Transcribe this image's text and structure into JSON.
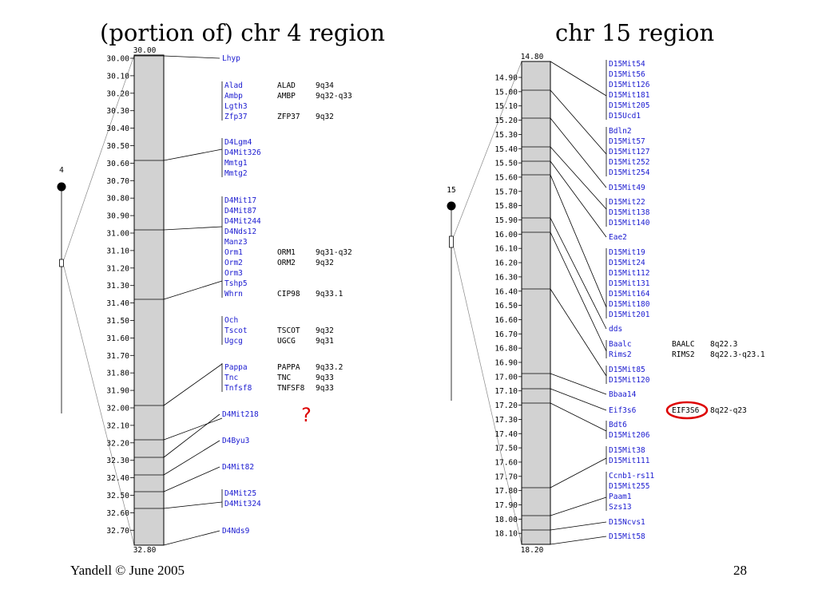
{
  "titles": {
    "left": "(portion of) chr 4 region",
    "right": "chr 15 region"
  },
  "footer": {
    "left": "Yandell © June 2005",
    "right": "28"
  },
  "question_mark": "?",
  "colors": {
    "marker": "#1a1ad0",
    "highlight": "#dd0000",
    "chromosome": "#d2d2d2"
  },
  "panels": [
    {
      "name": "chr4",
      "chrom_label": "4",
      "range": {
        "top": "30.00",
        "bottom": "32.80"
      },
      "ticks": [
        "30.00",
        "30.10",
        "30.20",
        "30.30",
        "30.40",
        "30.50",
        "30.60",
        "30.70",
        "30.80",
        "30.90",
        "31.00",
        "31.10",
        "31.20",
        "31.30",
        "31.40",
        "31.50",
        "31.60",
        "31.70",
        "31.80",
        "31.90",
        "32.00",
        "32.10",
        "32.20",
        "32.30",
        "32.40",
        "32.50",
        "32.60",
        "32.70"
      ],
      "groups": [
        {
          "markers": [
            {
              "name": "Lhyp"
            }
          ]
        },
        {
          "markers": [
            {
              "name": "Alad",
              "human": "ALAD",
              "band": "9q34"
            },
            {
              "name": "Ambp",
              "human": "AMBP",
              "band": "9q32-q33"
            },
            {
              "name": "Lgth3"
            },
            {
              "name": "Zfp37",
              "human": "ZFP37",
              "band": "9q32"
            }
          ]
        },
        {
          "markers": [
            {
              "name": "D4Lgm4"
            },
            {
              "name": "D4Mit326"
            },
            {
              "name": "Mmtg1"
            },
            {
              "name": "Mmtg2"
            }
          ]
        },
        {
          "markers": [
            {
              "name": "D4Mit17"
            },
            {
              "name": "D4Mit87"
            },
            {
              "name": "D4Mit244"
            },
            {
              "name": "D4Nds12"
            },
            {
              "name": "Manz3"
            },
            {
              "name": "Orm1",
              "human": "ORM1",
              "band": "9q31-q32"
            },
            {
              "name": "Orm2",
              "human": "ORM2",
              "band": "9q32"
            },
            {
              "name": "Orm3"
            },
            {
              "name": "Tshp5"
            },
            {
              "name": "Whrn",
              "human": "CIP98",
              "band": "9q33.1"
            }
          ]
        },
        {
          "markers": [
            {
              "name": "Och"
            },
            {
              "name": "Tscot",
              "human": "TSCOT",
              "band": "9q32"
            },
            {
              "name": "Ugcg",
              "human": "UGCG",
              "band": "9q31"
            }
          ]
        },
        {
          "markers": [
            {
              "name": "Pappa",
              "human": "PAPPA",
              "band": "9q33.2"
            },
            {
              "name": "Tnc",
              "human": "TNC",
              "band": "9q33"
            },
            {
              "name": "Tnfsf8",
              "human": "TNFSF8",
              "band": "9q33"
            }
          ]
        },
        {
          "markers": [
            {
              "name": "D4Mit218"
            }
          ]
        },
        {
          "markers": [
            {
              "name": "D4Byu3"
            }
          ]
        },
        {
          "markers": [
            {
              "name": "D4Mit82"
            }
          ]
        },
        {
          "markers": [
            {
              "name": "D4Mit25"
            },
            {
              "name": "D4Mit324"
            }
          ]
        },
        {
          "markers": [
            {
              "name": "D4Nds9"
            }
          ]
        }
      ]
    },
    {
      "name": "chr15",
      "chrom_label": "15",
      "range": {
        "top": "14.80",
        "bottom": "18.20"
      },
      "ticks": [
        "14.90",
        "15.00",
        "15.10",
        "15.20",
        "15.30",
        "15.40",
        "15.50",
        "15.60",
        "15.70",
        "15.80",
        "15.90",
        "16.00",
        "16.10",
        "16.20",
        "16.30",
        "16.40",
        "16.50",
        "16.60",
        "16.70",
        "16.80",
        "16.90",
        "17.00",
        "17.10",
        "17.20",
        "17.30",
        "17.40",
        "17.50",
        "17.60",
        "17.70",
        "17.80",
        "17.90",
        "18.00",
        "18.10"
      ],
      "groups": [
        {
          "markers": [
            {
              "name": "D15Mit54"
            },
            {
              "name": "D15Mit56"
            },
            {
              "name": "D15Mit126"
            },
            {
              "name": "D15Mit181"
            },
            {
              "name": "D15Mit205"
            },
            {
              "name": "D15Ucd1"
            }
          ]
        },
        {
          "markers": [
            {
              "name": "Bdln2"
            },
            {
              "name": "D15Mit57"
            },
            {
              "name": "D15Mit127"
            },
            {
              "name": "D15Mit252"
            },
            {
              "name": "D15Mit254"
            }
          ]
        },
        {
          "markers": [
            {
              "name": "D15Mit49"
            }
          ]
        },
        {
          "markers": [
            {
              "name": "D15Mit22"
            },
            {
              "name": "D15Mit138"
            },
            {
              "name": "D15Mit140"
            }
          ]
        },
        {
          "markers": [
            {
              "name": "Eae2"
            }
          ]
        },
        {
          "markers": [
            {
              "name": "D15Mit19"
            },
            {
              "name": "D15Mit24"
            },
            {
              "name": "D15Mit112"
            },
            {
              "name": "D15Mit131"
            },
            {
              "name": "D15Mit164"
            },
            {
              "name": "D15Mit180"
            },
            {
              "name": "D15Mit201"
            }
          ]
        },
        {
          "markers": [
            {
              "name": "dds"
            }
          ]
        },
        {
          "markers": [
            {
              "name": "Baalc",
              "human": "BAALC",
              "band": "8q22.3"
            },
            {
              "name": "Rims2",
              "human": "RIMS2",
              "band": "8q22.3-q23.1"
            }
          ]
        },
        {
          "markers": [
            {
              "name": "D15Mit85"
            },
            {
              "name": "D15Mit120"
            }
          ]
        },
        {
          "markers": [
            {
              "name": "Bbaa14"
            }
          ]
        },
        {
          "markers": [
            {
              "name": "Eif3s6",
              "human": "EIF3S6",
              "band": "8q22-q23",
              "highlight": true
            }
          ]
        },
        {
          "markers": [
            {
              "name": "Bdt6"
            },
            {
              "name": "D15Mit206"
            }
          ]
        },
        {
          "markers": [
            {
              "name": "D15Mit38"
            },
            {
              "name": "D15Mit111"
            }
          ]
        },
        {
          "markers": [
            {
              "name": "Ccnb1-rs11"
            },
            {
              "name": "D15Mit255"
            },
            {
              "name": "Paam1"
            },
            {
              "name": "Szs13"
            }
          ]
        },
        {
          "markers": [
            {
              "name": "D15Ncvs1"
            }
          ]
        },
        {
          "markers": [
            {
              "name": "D15Mit58"
            }
          ]
        }
      ]
    }
  ]
}
